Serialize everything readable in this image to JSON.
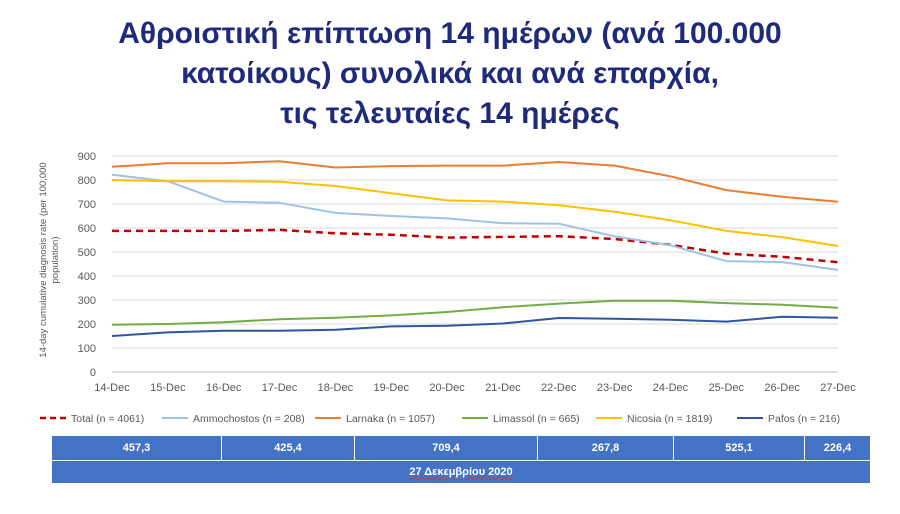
{
  "title_lines": [
    "Αθροιστική επίπτωση 14 ημέρων (ανά 100.000",
    "κατοίκους) συνολικά και ανά επαρχία,",
    "τις τελευταίες 14 ημέρες"
  ],
  "chart_data": {
    "type": "line",
    "title": "Αθροιστική επίπτωση 14 ημέρων (ανά 100.000 κατοίκους) συνολικά και ανά επαρχία, τις τελευταίες 14 ημέρες",
    "ylabel": "14-day cumulative diagnosis rate (per 100,000 population)",
    "xlabel": "",
    "ylim": [
      0,
      900
    ],
    "yticks": [
      0,
      100,
      200,
      300,
      400,
      500,
      600,
      700,
      800,
      900
    ],
    "grid": true,
    "legend_position": "bottom",
    "categories": [
      "14-Dec",
      "15-Dec",
      "16-Dec",
      "17-Dec",
      "18-Dec",
      "19-Dec",
      "20-Dec",
      "21-Dec",
      "22-Dec",
      "23-Dec",
      "24-Dec",
      "25-Dec",
      "26-Dec",
      "27-Dec"
    ],
    "series": [
      {
        "name": "Total (n = 4061)",
        "color": "#c00000",
        "dashed": true,
        "values": [
          588,
          588,
          588,
          592,
          578,
          572,
          560,
          563,
          566,
          554,
          530,
          493,
          480,
          457.3
        ]
      },
      {
        "name": "Ammochostos (n = 208)",
        "color": "#9dc3e6",
        "dashed": false,
        "values": [
          822,
          795,
          710,
          705,
          663,
          650,
          640,
          620,
          618,
          565,
          528,
          462,
          458,
          425.4
        ]
      },
      {
        "name": "Larnaka (n = 1057)",
        "color": "#ed7d31",
        "dashed": false,
        "values": [
          855,
          870,
          870,
          878,
          852,
          858,
          860,
          860,
          875,
          860,
          815,
          758,
          730,
          709.4
        ]
      },
      {
        "name": "Limassol (n = 665)",
        "color": "#70ad47",
        "dashed": false,
        "values": [
          197,
          200,
          207,
          220,
          226,
          236,
          250,
          270,
          285,
          297,
          297,
          287,
          280,
          267.8
        ]
      },
      {
        "name": "Nicosia (n = 1819)",
        "color": "#ffc000",
        "dashed": false,
        "values": [
          800,
          795,
          795,
          793,
          775,
          745,
          715,
          710,
          695,
          668,
          632,
          588,
          562,
          525.1
        ]
      },
      {
        "name": "Pafos (n = 216)",
        "color": "#2f55a4",
        "dashed": false,
        "values": [
          150,
          165,
          172,
          172,
          176,
          190,
          193,
          202,
          225,
          222,
          218,
          210,
          230,
          226.4
        ]
      }
    ]
  },
  "table": {
    "values": [
      "457,3",
      "425,4",
      "709,4",
      "267,8",
      "525,1",
      "226,4"
    ],
    "date": "27 Δεκεμβρίου 2020"
  }
}
